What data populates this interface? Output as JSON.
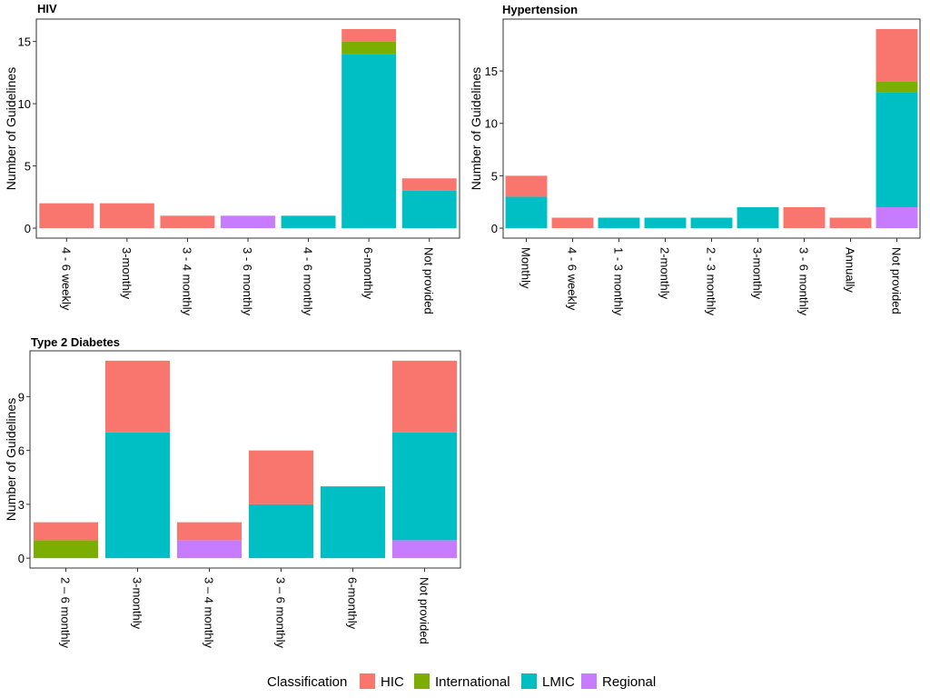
{
  "legend": {
    "title": "Classification",
    "entries": [
      {
        "label": "HIC",
        "color": "#F8766D"
      },
      {
        "label": "International",
        "color": "#7CAE00"
      },
      {
        "label": "LMIC",
        "color": "#00BFC4"
      },
      {
        "label": "Regional",
        "color": "#C77CFF"
      }
    ]
  },
  "chart_data": [
    {
      "type": "bar",
      "stacked": true,
      "title": "HIV",
      "xlabel": "",
      "ylabel": "Number of Guidelines",
      "ylim": [
        -0.8,
        16.8
      ],
      "yticks": [
        0,
        5,
        10,
        15
      ],
      "categories": [
        "4 - 6 weekly",
        "3-monthly",
        "3 - 4 monthly",
        "3 - 6 monthly",
        "4 - 6 monthly",
        "6-monthly",
        "Not provided"
      ],
      "series": [
        {
          "name": "Regional",
          "values": [
            0,
            0,
            0,
            1,
            0,
            0,
            0
          ]
        },
        {
          "name": "LMIC",
          "values": [
            0,
            0,
            0,
            0,
            1,
            14,
            3
          ]
        },
        {
          "name": "International",
          "values": [
            0,
            0,
            0,
            0,
            0,
            1,
            0
          ]
        },
        {
          "name": "HIC",
          "values": [
            2,
            2,
            1,
            0,
            0,
            1,
            1
          ]
        }
      ]
    },
    {
      "type": "bar",
      "stacked": true,
      "title": "Hypertension",
      "xlabel": "",
      "ylabel": "Number of Guidelines",
      "ylim": [
        -0.95,
        19.95
      ],
      "yticks": [
        0,
        5,
        10,
        15
      ],
      "categories": [
        "Monthly",
        "4 - 6 weekly",
        "1 - 3 monthly",
        "2-monthly",
        "2 - 3 monthly",
        "3-monthly",
        "3 - 6 monthly",
        "Annually",
        "Not provided"
      ],
      "series": [
        {
          "name": "Regional",
          "values": [
            0,
            0,
            0,
            0,
            0,
            0,
            0,
            0,
            2
          ]
        },
        {
          "name": "LMIC",
          "values": [
            3,
            0,
            1,
            1,
            1,
            2,
            0,
            0,
            11
          ]
        },
        {
          "name": "International",
          "values": [
            0,
            0,
            0,
            0,
            0,
            0,
            0,
            0,
            1
          ]
        },
        {
          "name": "HIC",
          "values": [
            2,
            1,
            0,
            0,
            0,
            0,
            2,
            1,
            5
          ]
        }
      ]
    },
    {
      "type": "bar",
      "stacked": true,
      "title": "Type 2 Diabetes",
      "xlabel": "",
      "ylabel": "Number of Guidelines",
      "ylim": [
        -0.55,
        11.55
      ],
      "yticks": [
        0,
        3,
        6,
        9
      ],
      "categories": [
        "2 – 6 monthly",
        "3-monthly",
        "3 – 4 monthly",
        "3 – 6 monthly",
        "6-monthly",
        "Not provided"
      ],
      "series": [
        {
          "name": "Regional",
          "values": [
            0,
            0,
            1,
            0,
            0,
            1
          ]
        },
        {
          "name": "LMIC",
          "values": [
            0,
            7,
            0,
            3,
            4,
            6
          ]
        },
        {
          "name": "International",
          "values": [
            1,
            0,
            0,
            0,
            0,
            0
          ]
        },
        {
          "name": "HIC",
          "values": [
            1,
            4,
            1,
            3,
            0,
            4
          ]
        }
      ]
    }
  ]
}
